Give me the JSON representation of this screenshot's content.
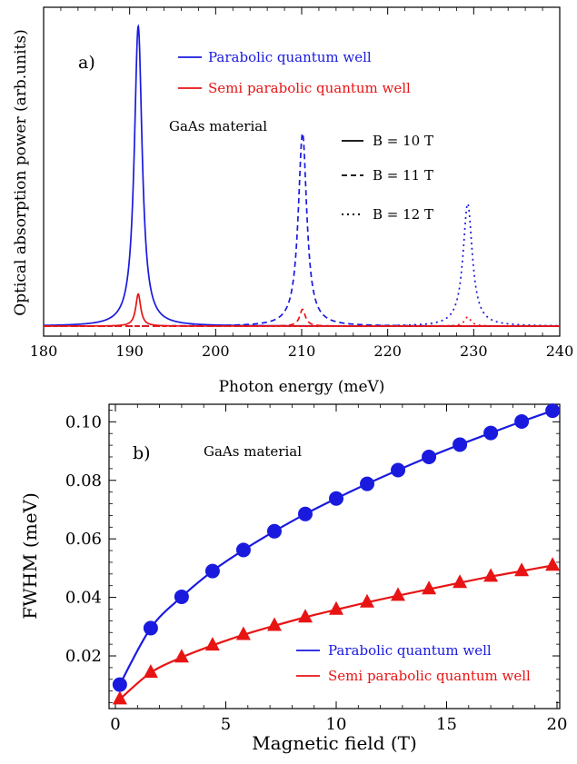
{
  "chart_data": [
    {
      "type": "line",
      "panel_label": "a)",
      "annotation": "GaAs material",
      "xlabel": "Photon energy (meV)",
      "ylabel": "Optical absorption power (arb.units)",
      "xlim": [
        180,
        240
      ],
      "ylim": [
        0,
        1.0
      ],
      "x_ticks": [
        "180",
        "190",
        "200",
        "210",
        "220",
        "230",
        "240"
      ],
      "grid": false,
      "legend_position": "top-center",
      "legend": [
        {
          "label": "Parabolic quantum well",
          "color": "#1a1adf"
        },
        {
          "label": "Semi parabolic quantum well",
          "color": "#e81414"
        }
      ],
      "style_legend": [
        {
          "label": "B = 10 T",
          "dash": "solid"
        },
        {
          "label": "B = 11 T",
          "dash": "dashed"
        },
        {
          "label": "B = 12 T",
          "dash": "dotted"
        }
      ],
      "series": [
        {
          "name": "Parabolic quantum well",
          "color": "#1a1adf",
          "dash": "solid",
          "peak_x": 191.0,
          "peak_y": 0.98,
          "hwhm": 0.55
        },
        {
          "name": "Parabolic quantum well",
          "color": "#1a1adf",
          "dash": "dashed",
          "peak_x": 210.1,
          "peak_y": 0.63,
          "hwhm": 0.6
        },
        {
          "name": "Parabolic quantum well",
          "color": "#1a1adf",
          "dash": "dotted",
          "peak_x": 229.3,
          "peak_y": 0.4,
          "hwhm": 0.65
        },
        {
          "name": "Semi parabolic quantum well",
          "color": "#e81414",
          "dash": "solid",
          "peak_x": 191.0,
          "peak_y": 0.105,
          "hwhm": 0.35
        },
        {
          "name": "Semi parabolic quantum well",
          "color": "#e81414",
          "dash": "dashed",
          "peak_x": 210.1,
          "peak_y": 0.055,
          "hwhm": 0.4
        },
        {
          "name": "Semi parabolic quantum well",
          "color": "#e81414",
          "dash": "dotted",
          "peak_x": 229.3,
          "peak_y": 0.03,
          "hwhm": 0.45
        }
      ]
    },
    {
      "type": "line",
      "panel_label": "b)",
      "annotation": "GaAs material",
      "xlabel": "Magnetic field (T)",
      "ylabel": "FWHM (meV)",
      "xlim": [
        0,
        20
      ],
      "ylim": [
        0.002,
        0.106
      ],
      "x_ticks": [
        "0",
        "5",
        "10",
        "15",
        "20"
      ],
      "y_ticks": [
        "0.02",
        "0.04",
        "0.06",
        "0.08",
        "0.10"
      ],
      "grid": false,
      "legend_position": "bottom-right",
      "x": [
        0.2,
        1.6,
        3.0,
        4.4,
        5.8,
        7.2,
        8.6,
        10.0,
        11.4,
        12.8,
        14.2,
        15.6,
        17.0,
        18.4,
        19.8
      ],
      "series": [
        {
          "name": "Parabolic quantum well",
          "color": "#1a1adf",
          "marker": "circle",
          "values": [
            0.0102,
            0.0295,
            0.0402,
            0.049,
            0.0562,
            0.0626,
            0.0685,
            0.0738,
            0.0788,
            0.0835,
            0.088,
            0.0922,
            0.0962,
            0.1001,
            0.1038
          ]
        },
        {
          "name": "Semi parabolic quantum well",
          "color": "#e81414",
          "marker": "triangle",
          "values": [
            0.0052,
            0.0143,
            0.0195,
            0.0236,
            0.0272,
            0.0303,
            0.0332,
            0.0358,
            0.0383,
            0.0406,
            0.0428,
            0.045,
            0.0471,
            0.049,
            0.0509
          ]
        }
      ]
    }
  ]
}
